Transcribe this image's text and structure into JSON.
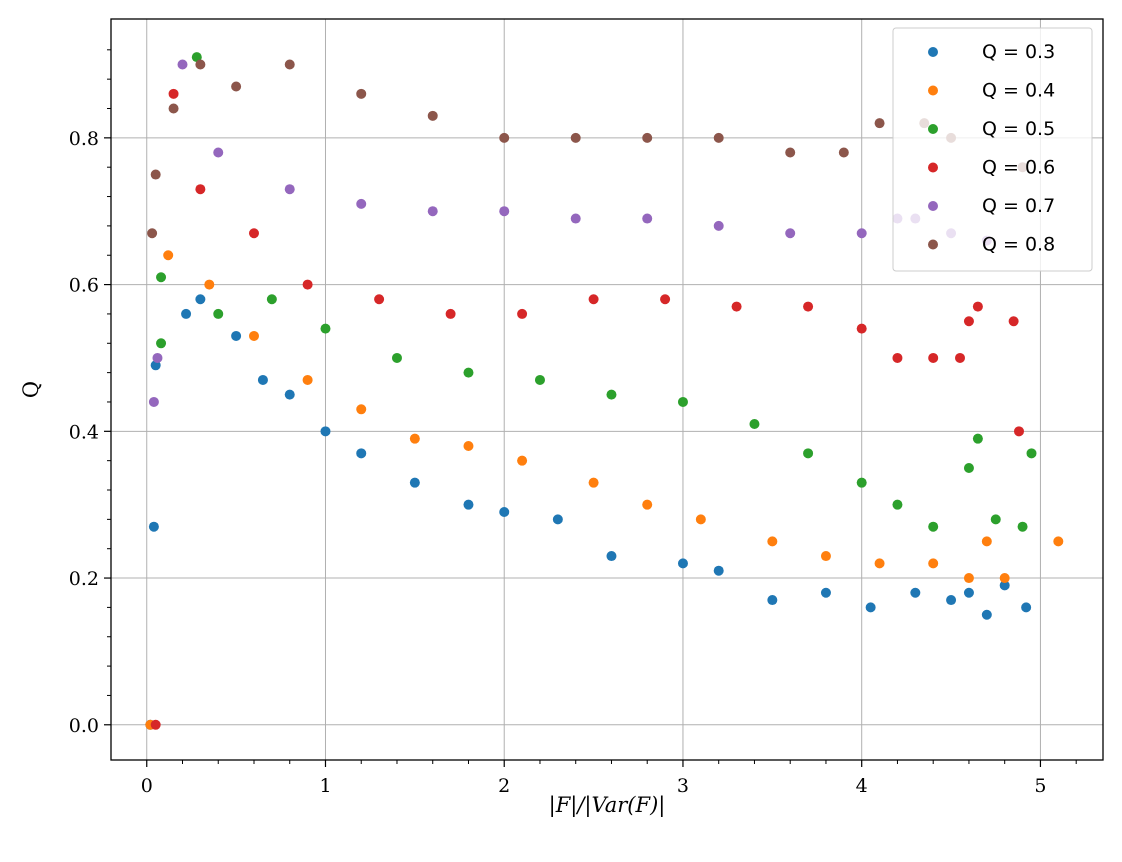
{
  "chart_data": {
    "type": "scatter",
    "title": "",
    "xlabel": "|F|/|Var(F)|",
    "ylabel": "Q",
    "xlim": [
      -0.2,
      5.35
    ],
    "ylim": [
      -0.048,
      0.962
    ],
    "x_ticks": [
      0,
      1,
      2,
      3,
      4,
      5
    ],
    "y_ticks": [
      0.0,
      0.2,
      0.4,
      0.6,
      0.8
    ],
    "y_tick_labels": [
      "0.0",
      "0.2",
      "0.4",
      "0.6",
      "0.8"
    ],
    "grid": true,
    "legend_position": "top-right",
    "series": [
      {
        "name": "Q = 0.3",
        "color": "#1f77b4",
        "points": [
          [
            0.02,
            0.0
          ],
          [
            0.04,
            0.27
          ],
          [
            0.05,
            0.49
          ],
          [
            0.22,
            0.56
          ],
          [
            0.3,
            0.58
          ],
          [
            0.5,
            0.53
          ],
          [
            0.65,
            0.47
          ],
          [
            0.8,
            0.45
          ],
          [
            1.0,
            0.4
          ],
          [
            1.2,
            0.37
          ],
          [
            1.5,
            0.33
          ],
          [
            1.8,
            0.3
          ],
          [
            2.0,
            0.29
          ],
          [
            2.3,
            0.28
          ],
          [
            2.6,
            0.23
          ],
          [
            3.0,
            0.22
          ],
          [
            3.2,
            0.21
          ],
          [
            3.5,
            0.17
          ],
          [
            3.8,
            0.18
          ],
          [
            4.05,
            0.16
          ],
          [
            4.3,
            0.18
          ],
          [
            4.5,
            0.17
          ],
          [
            4.6,
            0.18
          ],
          [
            4.7,
            0.15
          ],
          [
            4.8,
            0.19
          ],
          [
            4.92,
            0.16
          ]
        ]
      },
      {
        "name": "Q = 0.4",
        "color": "#ff7f0e",
        "points": [
          [
            0.02,
            0.0
          ],
          [
            0.12,
            0.64
          ],
          [
            0.35,
            0.6
          ],
          [
            0.6,
            0.53
          ],
          [
            0.9,
            0.47
          ],
          [
            1.2,
            0.43
          ],
          [
            1.5,
            0.39
          ],
          [
            1.8,
            0.38
          ],
          [
            2.1,
            0.36
          ],
          [
            2.5,
            0.33
          ],
          [
            2.8,
            0.3
          ],
          [
            3.1,
            0.28
          ],
          [
            3.5,
            0.25
          ],
          [
            3.8,
            0.23
          ],
          [
            4.1,
            0.22
          ],
          [
            4.4,
            0.22
          ],
          [
            4.6,
            0.2
          ],
          [
            4.7,
            0.25
          ],
          [
            4.8,
            0.2
          ],
          [
            5.1,
            0.25
          ]
        ]
      },
      {
        "name": "Q = 0.5",
        "color": "#2ca02c",
        "points": [
          [
            0.08,
            0.52
          ],
          [
            0.08,
            0.61
          ],
          [
            0.28,
            0.91
          ],
          [
            0.4,
            0.56
          ],
          [
            0.7,
            0.58
          ],
          [
            1.0,
            0.54
          ],
          [
            1.4,
            0.5
          ],
          [
            1.8,
            0.48
          ],
          [
            2.2,
            0.47
          ],
          [
            2.6,
            0.45
          ],
          [
            3.0,
            0.44
          ],
          [
            3.4,
            0.41
          ],
          [
            3.7,
            0.37
          ],
          [
            4.0,
            0.33
          ],
          [
            4.2,
            0.3
          ],
          [
            4.4,
            0.27
          ],
          [
            4.6,
            0.35
          ],
          [
            4.65,
            0.39
          ],
          [
            4.75,
            0.28
          ],
          [
            4.95,
            0.37
          ],
          [
            4.9,
            0.27
          ]
        ]
      },
      {
        "name": "Q = 0.6",
        "color": "#d62728",
        "points": [
          [
            0.05,
            0.0
          ],
          [
            0.15,
            0.86
          ],
          [
            0.3,
            0.73
          ],
          [
            0.6,
            0.67
          ],
          [
            0.9,
            0.6
          ],
          [
            1.3,
            0.58
          ],
          [
            1.7,
            0.56
          ],
          [
            2.1,
            0.56
          ],
          [
            2.5,
            0.58
          ],
          [
            2.9,
            0.58
          ],
          [
            3.3,
            0.57
          ],
          [
            3.7,
            0.57
          ],
          [
            4.0,
            0.54
          ],
          [
            4.2,
            0.5
          ],
          [
            4.4,
            0.5
          ],
          [
            4.55,
            0.5
          ],
          [
            4.6,
            0.55
          ],
          [
            4.65,
            0.57
          ],
          [
            4.85,
            0.55
          ],
          [
            4.88,
            0.4
          ]
        ]
      },
      {
        "name": "Q = 0.7",
        "color": "#9467bd",
        "points": [
          [
            0.04,
            0.44
          ],
          [
            0.06,
            0.5
          ],
          [
            0.2,
            0.9
          ],
          [
            0.4,
            0.78
          ],
          [
            0.8,
            0.73
          ],
          [
            1.2,
            0.71
          ],
          [
            1.6,
            0.7
          ],
          [
            2.0,
            0.7
          ],
          [
            2.4,
            0.69
          ],
          [
            2.8,
            0.69
          ],
          [
            3.2,
            0.68
          ],
          [
            3.6,
            0.67
          ],
          [
            4.0,
            0.67
          ],
          [
            4.2,
            0.69
          ],
          [
            4.3,
            0.69
          ],
          [
            4.5,
            0.67
          ],
          [
            4.7,
            0.66
          ]
        ]
      },
      {
        "name": "Q = 0.8",
        "color": "#8c564b",
        "points": [
          [
            0.03,
            0.67
          ],
          [
            0.05,
            0.75
          ],
          [
            0.15,
            0.84
          ],
          [
            0.3,
            0.9
          ],
          [
            0.5,
            0.87
          ],
          [
            0.8,
            0.9
          ],
          [
            1.2,
            0.86
          ],
          [
            1.6,
            0.83
          ],
          [
            2.0,
            0.8
          ],
          [
            2.4,
            0.8
          ],
          [
            2.8,
            0.8
          ],
          [
            3.2,
            0.8
          ],
          [
            3.6,
            0.78
          ],
          [
            3.9,
            0.78
          ],
          [
            4.1,
            0.82
          ],
          [
            4.35,
            0.82
          ],
          [
            4.5,
            0.8
          ],
          [
            4.9,
            0.76
          ]
        ]
      }
    ]
  }
}
